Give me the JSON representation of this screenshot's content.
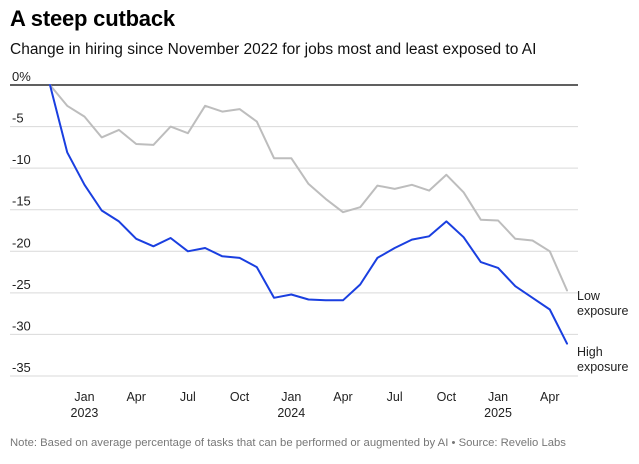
{
  "title": "A steep cutback",
  "subtitle": "Change in hiring since November 2022 for jobs most and least exposed to AI",
  "note": "Note: Based on average percentage of tasks that can be performed or augmented by AI • Source: Revelio Labs",
  "chart_data": {
    "type": "line",
    "x": [
      "2022-11",
      "2022-12",
      "2023-01",
      "2023-02",
      "2023-03",
      "2023-04",
      "2023-05",
      "2023-06",
      "2023-07",
      "2023-08",
      "2023-09",
      "2023-10",
      "2023-11",
      "2023-12",
      "2024-01",
      "2024-02",
      "2024-03",
      "2024-04",
      "2024-05",
      "2024-06",
      "2024-07",
      "2024-08",
      "2024-09",
      "2024-10",
      "2024-11",
      "2024-12",
      "2025-01",
      "2025-02",
      "2025-03",
      "2025-04",
      "2025-05"
    ],
    "series": [
      {
        "name": "Low exposure",
        "color": "#bdbdbd",
        "label_lines": [
          "Low",
          "exposure"
        ],
        "values": [
          0,
          -2.5,
          -3.8,
          -6.3,
          -5.4,
          -7.1,
          -7.2,
          -5.0,
          -5.8,
          -2.5,
          -3.2,
          -2.9,
          -4.4,
          -8.8,
          -8.8,
          -11.9,
          -13.7,
          -15.3,
          -14.7,
          -12.1,
          -12.5,
          -12.0,
          -12.7,
          -10.8,
          -12.9,
          -16.2,
          -16.3,
          -18.5,
          -18.7,
          -20.0,
          -24.7
        ]
      },
      {
        "name": "High exposure",
        "color": "#1a3fe0",
        "label_lines": [
          "High",
          "exposure"
        ],
        "values": [
          0,
          -8.1,
          -12.0,
          -15.1,
          -16.4,
          -18.5,
          -19.4,
          -18.4,
          -20.0,
          -19.6,
          -20.6,
          -20.8,
          -21.9,
          -25.6,
          -25.2,
          -25.8,
          -25.9,
          -25.9,
          -24.0,
          -20.8,
          -19.6,
          -18.6,
          -18.2,
          -16.4,
          -18.3,
          -21.3,
          -22.0,
          -24.2,
          -25.6,
          -27.0,
          -31.1
        ]
      }
    ],
    "xticks": [
      {
        "month": "2023-01",
        "label": "Jan",
        "year": "2023"
      },
      {
        "month": "2023-04",
        "label": "Apr",
        "year": ""
      },
      {
        "month": "2023-07",
        "label": "Jul",
        "year": ""
      },
      {
        "month": "2023-10",
        "label": "Oct",
        "year": ""
      },
      {
        "month": "2024-01",
        "label": "Jan",
        "year": "2024"
      },
      {
        "month": "2024-04",
        "label": "Apr",
        "year": ""
      },
      {
        "month": "2024-07",
        "label": "Jul",
        "year": ""
      },
      {
        "month": "2024-10",
        "label": "Oct",
        "year": ""
      },
      {
        "month": "2025-01",
        "label": "Jan",
        "year": "2025"
      },
      {
        "month": "2025-04",
        "label": "Apr",
        "year": ""
      }
    ],
    "yticks": [
      {
        "value": 0,
        "label": "0%"
      },
      {
        "value": -5,
        "label": "-5"
      },
      {
        "value": -10,
        "label": "-10"
      },
      {
        "value": -15,
        "label": "-15"
      },
      {
        "value": -20,
        "label": "-20"
      },
      {
        "value": -25,
        "label": "-25"
      },
      {
        "value": -30,
        "label": "-30"
      },
      {
        "value": -35,
        "label": "-35"
      }
    ],
    "ylim": [
      -35,
      0
    ],
    "grid": true,
    "legend": "direct labels at line ends"
  }
}
